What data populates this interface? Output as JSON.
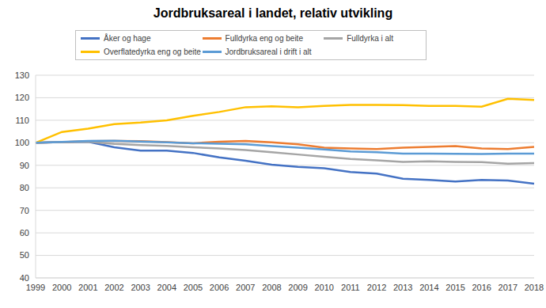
{
  "chart_data": {
    "type": "line",
    "title": "Jordbruksareal i landet, relativ utvikling",
    "categories": [
      "1999",
      "2000",
      "2001",
      "2002",
      "2003",
      "2004",
      "2005",
      "2006",
      "2007",
      "2008",
      "2009",
      "2010",
      "2011",
      "2012",
      "2013",
      "2014",
      "2015",
      "2016",
      "2017",
      "2018"
    ],
    "series": [
      {
        "name": "Åker og hage",
        "color": "#4472c4",
        "values": [
          100,
          100.3,
          100.5,
          98,
          96.5,
          96.5,
          95.5,
          93.5,
          92,
          90.3,
          89.3,
          88.7,
          87,
          86.3,
          84,
          83.5,
          82.8,
          83.5,
          83.2,
          81.8
        ]
      },
      {
        "name": "Fulldyrka eng og beite",
        "color": "#ed7d31",
        "values": [
          100,
          100.3,
          100.7,
          100.8,
          100.7,
          100.3,
          99.8,
          100.5,
          100.8,
          100.2,
          99.3,
          97.8,
          97.5,
          97.2,
          97.8,
          98.2,
          98.5,
          97.5,
          97.2,
          98.2
        ]
      },
      {
        "name": "Fulldyrka i alt",
        "color": "#a5a5a5",
        "values": [
          100,
          100.3,
          100.5,
          99.5,
          99,
          98.6,
          98,
          97.5,
          96.8,
          95.8,
          94.8,
          93.8,
          92.8,
          92.2,
          91.5,
          91.8,
          91.5,
          91.4,
          90.7,
          91
        ]
      },
      {
        "name": "Overflatedyrka eng og beite",
        "color": "#ffc000",
        "values": [
          100,
          104.8,
          106.3,
          108.3,
          109,
          110,
          112,
          113.7,
          115.8,
          116.2,
          115.8,
          116.4,
          116.8,
          116.8,
          116.7,
          116.4,
          116.4,
          116,
          119.5,
          119
        ]
      },
      {
        "name": "Jordbruksareal i drift i alt",
        "color": "#5b9bd5",
        "values": [
          100,
          100.4,
          100.8,
          100.9,
          100.6,
          100.2,
          99.8,
          99.6,
          99.3,
          98.5,
          97.8,
          97,
          96.2,
          95.8,
          95.2,
          95.2,
          95.1,
          95,
          95.2,
          95.2
        ]
      }
    ],
    "ylim": [
      40,
      130
    ],
    "yticks": [
      40,
      50,
      60,
      70,
      80,
      90,
      100,
      110,
      120,
      130
    ],
    "grid": true,
    "legend": "top"
  }
}
